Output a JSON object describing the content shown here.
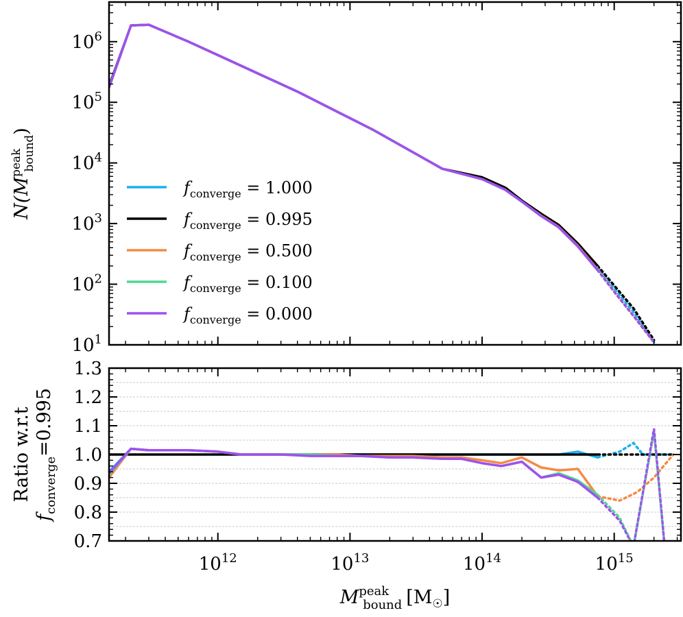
{
  "chart_data": [
    {
      "type": "line",
      "panel": "top",
      "ylabel_parts": {
        "main": "N(M",
        "sup": "peak",
        "sub": "bound",
        "close": ")"
      },
      "yscale": "log",
      "ylim": [
        10,
        4500000
      ],
      "xscale": "log",
      "xlim": [
        150000000000,
        3200000000000000
      ],
      "yticks": [
        {
          "value": 10,
          "base": "10",
          "exp": "1"
        },
        {
          "value": 100,
          "base": "10",
          "exp": "2"
        },
        {
          "value": 1000,
          "base": "10",
          "exp": "3"
        },
        {
          "value": 10000,
          "base": "10",
          "exp": "4"
        },
        {
          "value": 100000,
          "base": "10",
          "exp": "5"
        },
        {
          "value": 1000000,
          "base": "10",
          "exp": "6"
        }
      ],
      "legend_placement": "lower-left",
      "legend_prefix": "f",
      "legend_sub": "converge",
      "series": [
        {
          "name": "1.000",
          "color": "#1AB0F0",
          "x": [
            150000000000.0,
            220000000000.0,
            300000000000.0,
            600000000000.0,
            1000000000000.0,
            2000000000000.0,
            4000000000000.0,
            8000000000000.0,
            15000000000000.0,
            30000000000000.0,
            50000000000000.0,
            100000000000000.0,
            150000000000000.0,
            200000000000000.0,
            280000000000000.0,
            380000000000000.0,
            530000000000000.0,
            750000000000000.0
          ],
          "y": [
            180000,
            1850000,
            1900000,
            1000000,
            600000,
            300000,
            150000,
            70000,
            35000,
            15000,
            8000,
            5500,
            3600,
            2300,
            1350,
            900,
            450,
            185
          ]
        },
        {
          "name": "0.995",
          "color": "#000000",
          "x": [
            150000000000.0,
            220000000000.0,
            300000000000.0,
            600000000000.0,
            1000000000000.0,
            2000000000000.0,
            4000000000000.0,
            8000000000000.0,
            15000000000000.0,
            30000000000000.0,
            50000000000000.0,
            100000000000000.0,
            150000000000000.0,
            200000000000000.0,
            280000000000000.0,
            380000000000000.0,
            530000000000000.0,
            750000000000000.0
          ],
          "y": [
            185000,
            1850000,
            1900000,
            1000000,
            600000,
            300000,
            150000,
            70000,
            35000,
            15000,
            8000,
            5800,
            3900,
            2400,
            1450,
            950,
            470,
            200
          ]
        },
        {
          "name": "0.500",
          "color": "#F58A45",
          "x": [
            150000000000.0,
            220000000000.0,
            300000000000.0,
            600000000000.0,
            1000000000000.0,
            2000000000000.0,
            4000000000000.0,
            8000000000000.0,
            15000000000000.0,
            30000000000000.0,
            50000000000000.0,
            100000000000000.0,
            150000000000000.0,
            200000000000000.0,
            280000000000000.0,
            380000000000000.0,
            530000000000000.0,
            750000000000000.0
          ],
          "y": [
            175000,
            1850000,
            1900000,
            1000000,
            600000,
            300000,
            150000,
            70000,
            35000,
            15000,
            8000,
            5400,
            3600,
            2300,
            1350,
            880,
            430,
            175
          ]
        },
        {
          "name": "0.100",
          "color": "#50D890",
          "x": [
            150000000000.0,
            220000000000.0,
            300000000000.0,
            600000000000.0,
            1000000000000.0,
            2000000000000.0,
            4000000000000.0,
            8000000000000.0,
            15000000000000.0,
            30000000000000.0,
            50000000000000.0,
            100000000000000.0,
            150000000000000.0,
            200000000000000.0,
            280000000000000.0,
            380000000000000.0,
            530000000000000.0,
            750000000000000.0
          ],
          "y": [
            175000,
            1850000,
            1900000,
            1000000,
            600000,
            300000,
            150000,
            70000,
            35000,
            15000,
            8000,
            5400,
            3600,
            2300,
            1330,
            870,
            420,
            170
          ]
        },
        {
          "name": "0.000",
          "color": "#A050F0",
          "x": [
            150000000000.0,
            220000000000.0,
            300000000000.0,
            600000000000.0,
            1000000000000.0,
            2000000000000.0,
            4000000000000.0,
            8000000000000.0,
            15000000000000.0,
            30000000000000.0,
            50000000000000.0,
            100000000000000.0,
            150000000000000.0,
            200000000000000.0,
            280000000000000.0,
            380000000000000.0,
            530000000000000.0,
            750000000000000.0
          ],
          "y": [
            175000,
            1850000,
            1900000,
            1000000,
            600000,
            300000,
            150000,
            70000,
            35000,
            15000,
            8000,
            5400,
            3600,
            2300,
            1330,
            870,
            420,
            170
          ]
        }
      ],
      "dotted_extension": {
        "x": [
          750000000000000.0,
          1000000000000000.0,
          1400000000000000.0,
          2000000000000000.0
        ],
        "y_by_series": [
          [
            185,
            85,
            35,
            11
          ],
          [
            200,
            95,
            40,
            12
          ],
          [
            175,
            75,
            30,
            11
          ],
          [
            170,
            75,
            30,
            11
          ],
          [
            170,
            75,
            30,
            11
          ]
        ]
      }
    },
    {
      "type": "line",
      "panel": "bottom",
      "ylabel_line1": "Ratio w.r.t",
      "ylabel_line2_parts": {
        "f": "f",
        "sub": "converge",
        "rest": "=0.995"
      },
      "xlabel_parts": {
        "main": "M",
        "sup": "peak",
        "sub": "bound",
        "unit_open": "[M",
        "unit_sym": "☉",
        "unit_close": "]"
      },
      "ylim": [
        0.7,
        1.3
      ],
      "xscale": "log",
      "xlim": [
        150000000000,
        3200000000000000
      ],
      "yticks": [
        "0.7",
        "0.8",
        "0.9",
        "1.0",
        "1.1",
        "1.2",
        "1.3"
      ],
      "xticks": [
        {
          "value": 1000000000000.0,
          "base": "10",
          "exp": "12"
        },
        {
          "value": 10000000000000.0,
          "base": "10",
          "exp": "13"
        },
        {
          "value": 100000000000000.0,
          "base": "10",
          "exp": "14"
        },
        {
          "value": 1000000000000000.0,
          "base": "10",
          "exp": "15"
        }
      ],
      "grid": "horizontal dashed",
      "series": [
        {
          "name": "1.000",
          "color": "#1AB0F0",
          "x": [
            150000000000.0,
            220000000000.0,
            300000000000.0,
            600000000000.0,
            1000000000000.0,
            1500000000000.0,
            2000000000000.0,
            3000000000000.0,
            5000000000000.0,
            8000000000000.0,
            12000000000000.0,
            20000000000000.0,
            30000000000000.0,
            50000000000000.0,
            70000000000000.0,
            100000000000000.0,
            140000000000000.0,
            200000000000000.0,
            280000000000000.0,
            380000000000000.0,
            530000000000000.0,
            750000000000000.0
          ],
          "y": [
            0.94,
            1.02,
            1.015,
            1.015,
            1.01,
            1.0,
            1.0,
            1.0,
            1.0,
            1.0,
            1.0,
            1.0,
            1.0,
            1.0,
            1.0,
            1.0,
            1.0,
            1.0,
            1.0,
            1.0,
            1.01,
            0.99
          ]
        },
        {
          "name": "0.995",
          "color": "#000000",
          "x": [
            150000000000.0,
            750000000000000.0
          ],
          "y": [
            1.0,
            1.0
          ]
        },
        {
          "name": "0.500",
          "color": "#F58A45",
          "x": [
            150000000000.0,
            220000000000.0,
            300000000000.0,
            600000000000.0,
            1000000000000.0,
            1500000000000.0,
            2000000000000.0,
            3000000000000.0,
            5000000000000.0,
            8000000000000.0,
            12000000000000.0,
            20000000000000.0,
            30000000000000.0,
            50000000000000.0,
            70000000000000.0,
            100000000000000.0,
            140000000000000.0,
            200000000000000.0,
            280000000000000.0,
            380000000000000.0,
            530000000000000.0,
            750000000000000.0
          ],
          "y": [
            0.92,
            1.02,
            1.015,
            1.015,
            1.01,
            1.0,
            1.0,
            1.0,
            1.0,
            1.0,
            0.995,
            0.995,
            0.995,
            0.99,
            0.99,
            0.98,
            0.97,
            0.99,
            0.955,
            0.945,
            0.95,
            0.855
          ]
        },
        {
          "name": "0.100",
          "color": "#50D890",
          "x": [
            150000000000.0,
            220000000000.0,
            300000000000.0,
            600000000000.0,
            1000000000000.0,
            1500000000000.0,
            2000000000000.0,
            3000000000000.0,
            5000000000000.0,
            8000000000000.0,
            12000000000000.0,
            20000000000000.0,
            30000000000000.0,
            50000000000000.0,
            70000000000000.0,
            100000000000000.0,
            140000000000000.0,
            200000000000000.0,
            280000000000000.0,
            380000000000000.0,
            530000000000000.0,
            750000000000000.0
          ],
          "y": [
            0.93,
            1.02,
            1.015,
            1.015,
            1.01,
            1.0,
            1.0,
            1.0,
            1.0,
            0.995,
            0.995,
            0.99,
            0.99,
            0.985,
            0.985,
            0.97,
            0.96,
            0.975,
            0.92,
            0.935,
            0.91,
            0.86
          ]
        },
        {
          "name": "0.000",
          "color": "#A050F0",
          "x": [
            150000000000.0,
            220000000000.0,
            300000000000.0,
            600000000000.0,
            1000000000000.0,
            1500000000000.0,
            2000000000000.0,
            3000000000000.0,
            5000000000000.0,
            8000000000000.0,
            12000000000000.0,
            20000000000000.0,
            30000000000000.0,
            50000000000000.0,
            70000000000000.0,
            100000000000000.0,
            140000000000000.0,
            200000000000000.0,
            280000000000000.0,
            380000000000000.0,
            530000000000000.0,
            750000000000000.0
          ],
          "y": [
            0.935,
            1.02,
            1.015,
            1.015,
            1.01,
            1.0,
            1.0,
            1.0,
            0.995,
            0.995,
            0.995,
            0.99,
            0.99,
            0.985,
            0.985,
            0.97,
            0.96,
            0.975,
            0.92,
            0.93,
            0.905,
            0.85
          ]
        }
      ],
      "dotted_extension": {
        "series": [
          {
            "name": "1.000",
            "x": [
              750000000000000.0,
              1100000000000000.0,
              1400000000000000.0,
              1650000000000000.0,
              2000000000000000.0,
              2500000000000000.0
            ],
            "y": [
              0.99,
              1.01,
              1.04,
              1.0,
              1.0,
              1.0
            ]
          },
          {
            "name": "0.995",
            "x": [
              750000000000000.0,
              2800000000000000.0
            ],
            "y": [
              1.0,
              1.0
            ]
          },
          {
            "name": "0.500",
            "x": [
              750000000000000.0,
              1100000000000000.0,
              1500000000000000.0,
              2000000000000000.0,
              2800000000000000.0
            ],
            "y": [
              0.855,
              0.84,
              0.87,
              0.92,
              1.0
            ]
          },
          {
            "name": "0.100",
            "x": [
              750000000000000.0,
              1100000000000000.0,
              1400000000000000.0,
              2000000000000000.0,
              2500000000000000.0
            ],
            "y": [
              0.86,
              0.78,
              0.68,
              1.08,
              0.6
            ]
          },
          {
            "name": "0.000",
            "x": [
              750000000000000.0,
              1100000000000000.0,
              1400000000000000.0,
              2000000000000000.0,
              2500000000000000.0
            ],
            "y": [
              0.85,
              0.77,
              0.68,
              1.09,
              0.6
            ]
          }
        ]
      }
    }
  ]
}
